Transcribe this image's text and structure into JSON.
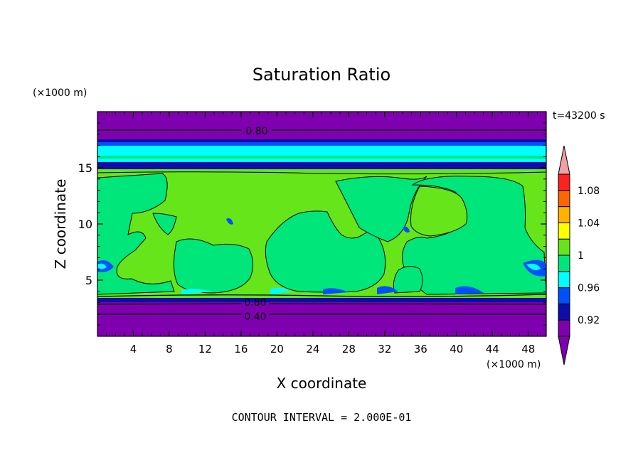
{
  "chart_data": {
    "type": "heatmap",
    "title": "Saturation Ratio",
    "xlabel": "X coordinate",
    "ylabel": "Z coordinate",
    "x_unit": "(×1000 m)",
    "y_unit": "(×1000 m)",
    "time_label": "t=43200 s",
    "footer": "CONTOUR INTERVAL = 2.000E-01",
    "xlim": [
      0,
      50
    ],
    "ylim": [
      0,
      20
    ],
    "x_ticks": [
      "4",
      "8",
      "12",
      "16",
      "20",
      "24",
      "28",
      "32",
      "36",
      "40",
      "44",
      "48"
    ],
    "y_ticks": [
      "5",
      "10",
      "15"
    ],
    "colorbar": {
      "levels": [
        0.9,
        0.92,
        0.94,
        0.96,
        0.98,
        1.0,
        1.02,
        1.04,
        1.06,
        1.08,
        1.1
      ],
      "labels": [
        "0.92",
        "0.96",
        "1",
        "1.04",
        "1.08"
      ],
      "colors": [
        "#7f00ae",
        "#0d0da8",
        "#0050ff",
        "#00ffff",
        "#00e67a",
        "#66e61a",
        "#ffff00",
        "#ffb300",
        "#ff6600",
        "#ff2020",
        "#f0a0a0"
      ],
      "extend": "both"
    },
    "contour_labels": [
      "0.80",
      "0.80",
      "0.40"
    ],
    "layers": [
      {
        "z": [
          0.0,
          2.0
        ],
        "category": "< 0.92"
      },
      {
        "z": [
          2.0,
          3.0
        ],
        "category": "< 0.92"
      },
      {
        "z": [
          3.0,
          3.5
        ],
        "category": "0.92-0.94"
      },
      {
        "z": [
          3.5,
          14.5
        ],
        "category": "0.98-1.00 / 1.00-1.02 mixed"
      },
      {
        "z": [
          14.5,
          15.5
        ],
        "category": "0.92-0.96"
      },
      {
        "z": [
          15.5,
          17.2
        ],
        "category": "0.96-0.98"
      },
      {
        "z": [
          17.2,
          20.0
        ],
        "category": "< 0.92"
      }
    ]
  }
}
